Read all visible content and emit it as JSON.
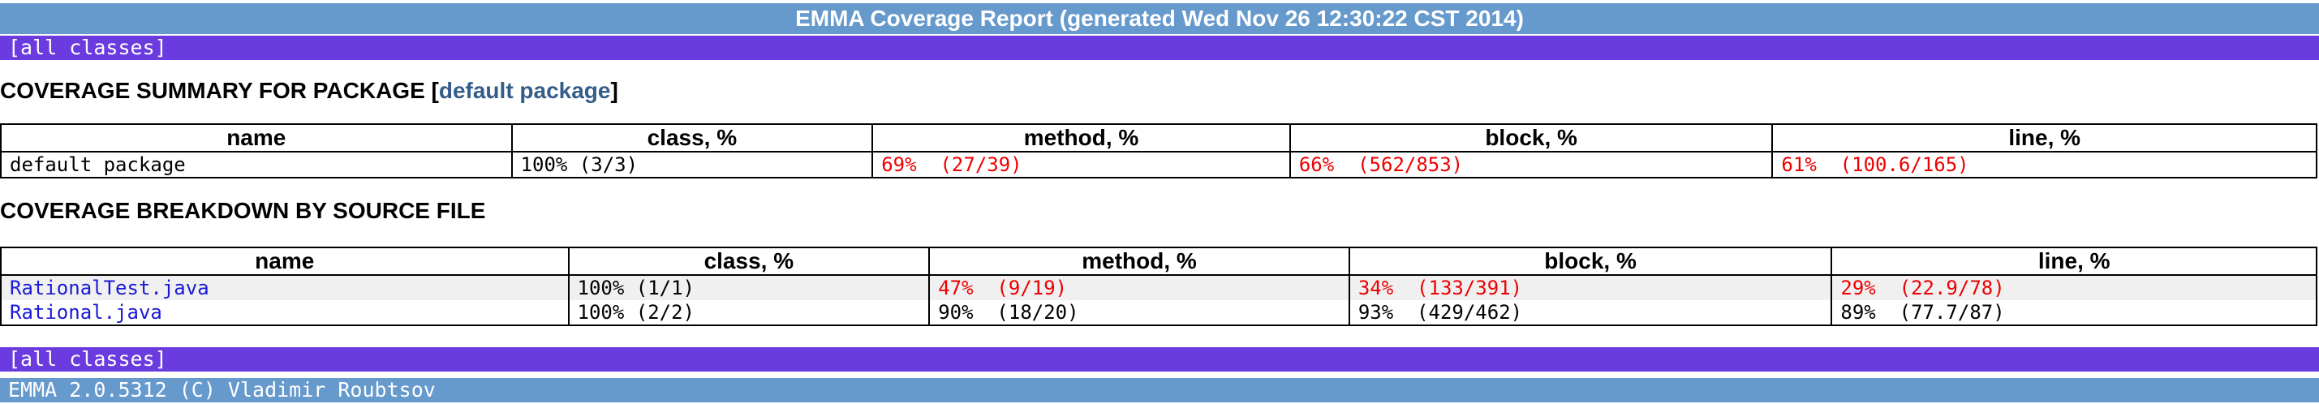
{
  "header": {
    "title": "EMMA Coverage Report (generated Wed Nov 26 12:30:22 CST 2014)"
  },
  "nav": {
    "all_classes": "[all classes]"
  },
  "summary": {
    "heading_prefix": "COVERAGE SUMMARY FOR PACKAGE [",
    "package_link": "default package",
    "heading_suffix": "]",
    "columns": [
      "name",
      "class, %",
      "method, %",
      "block, %",
      "line, %"
    ],
    "row": {
      "name": "default package",
      "class": "100% (3/3)",
      "method": "69%  (27/39)",
      "block": "66%  (562/853)",
      "line": "61%  (100.6/165)"
    }
  },
  "breakdown": {
    "heading": "COVERAGE BREAKDOWN BY SOURCE FILE",
    "columns": [
      "name",
      "class, %",
      "method, %",
      "block, %",
      "line, %"
    ],
    "rows": [
      {
        "name": "RationalTest.java",
        "class": "100% (1/1)",
        "method": "47%  (9/19)",
        "block": "34%  (133/391)",
        "line": "29%  (22.9/78)"
      },
      {
        "name": "Rational.java",
        "class": "100% (2/2)",
        "method": "90%  (18/20)",
        "block": "93%  (429/462)",
        "line": "89%  (77.7/87)"
      }
    ]
  },
  "footer": {
    "text": "EMMA 2.0.5312 (C) Vladimir Roubtsov"
  },
  "colors": {
    "title_bar": "#6699cc",
    "nav_bar": "#6a3bde",
    "low_coverage": "#ee0000",
    "link": "#1a1ad6"
  }
}
